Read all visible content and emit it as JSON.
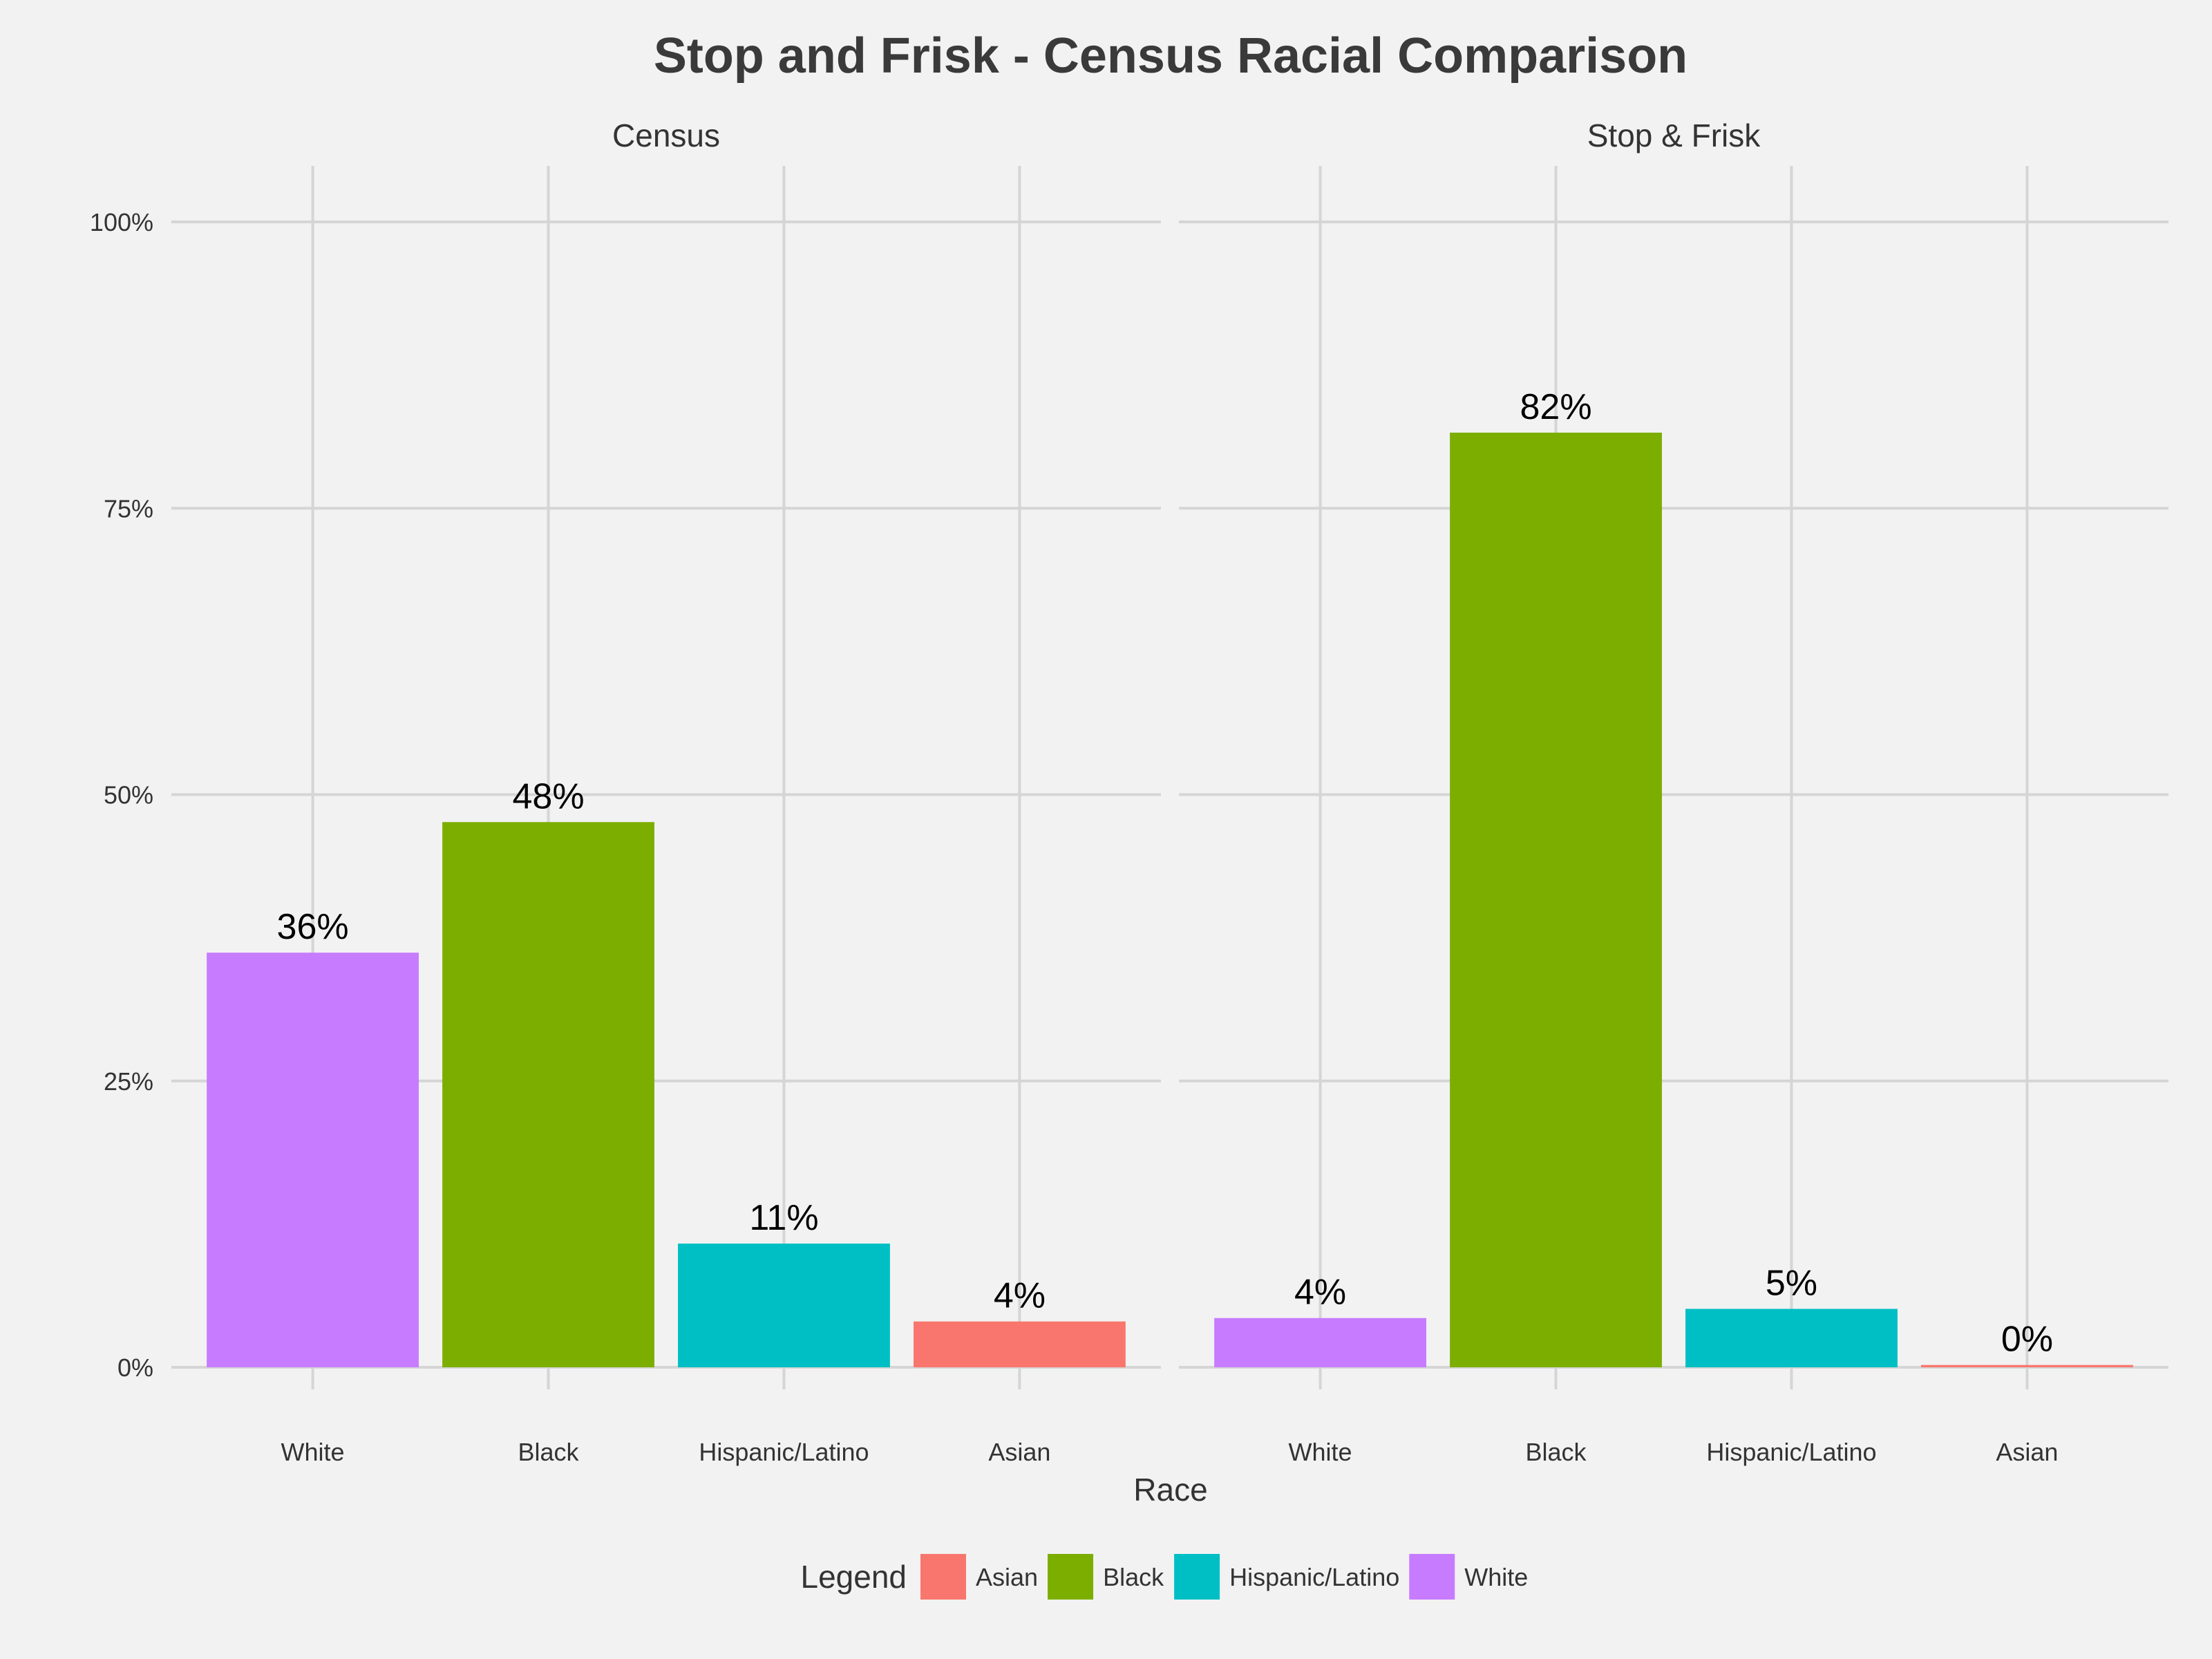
{
  "chart_data": {
    "type": "bar",
    "title": "Stop and Frisk - Census Racial Comparison",
    "xlabel": "Race",
    "ylabel": "",
    "ylim": [
      0,
      1
    ],
    "y_ticks": [
      {
        "value": 0,
        "label": "0%"
      },
      {
        "value": 0.25,
        "label": "25%"
      },
      {
        "value": 0.5,
        "label": "50%"
      },
      {
        "value": 0.75,
        "label": "75%"
      },
      {
        "value": 1.0,
        "label": "100%"
      }
    ],
    "categories": [
      "White",
      "Black",
      "Hispanic/Latino",
      "Asian"
    ],
    "facets": [
      {
        "name": "Census",
        "values": [
          0.362,
          0.476,
          0.108,
          0.04
        ],
        "labels": [
          "36%",
          "48%",
          "11%",
          "4%"
        ]
      },
      {
        "name": "Stop & Frisk",
        "values": [
          0.043,
          0.816,
          0.051,
          0.002
        ],
        "labels": [
          "4%",
          "82%",
          "5%",
          "0%"
        ]
      }
    ],
    "colors": {
      "White": "#C77CFF",
      "Black": "#7CAE00",
      "Hispanic/Latino": "#00BFC4",
      "Asian": "#F8766D"
    },
    "grid": true,
    "legend": {
      "title": "Legend",
      "position": "bottom",
      "entries": [
        "Asian",
        "Black",
        "Hispanic/Latino",
        "White"
      ]
    }
  }
}
